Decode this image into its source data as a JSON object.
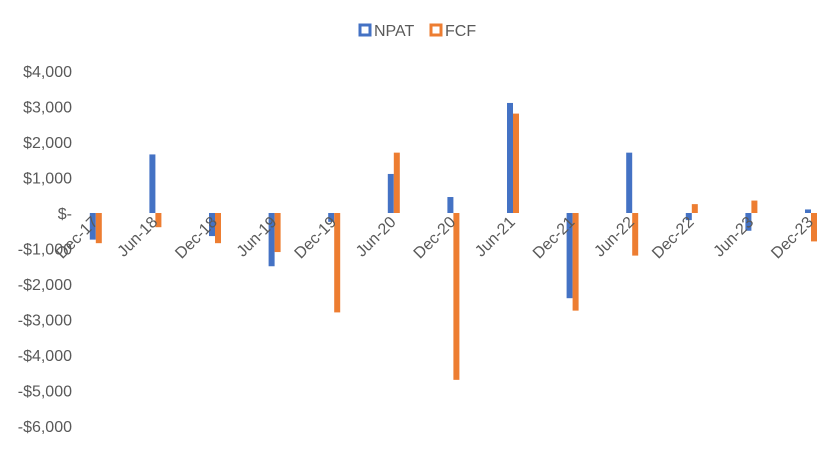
{
  "chart_data": {
    "type": "bar",
    "categories": [
      "Dec-17",
      "Jun-18",
      "Dec-18",
      "Jun-19",
      "Dec-19",
      "Jun-20",
      "Dec-20",
      "Jun-21",
      "Dec-21",
      "Jun-22",
      "Dec-22",
      "Jun-23",
      "Dec-23"
    ],
    "series": [
      {
        "name": "NPAT",
        "color": "#4472C4",
        "values": [
          -750,
          1650,
          -650,
          -1500,
          -250,
          1100,
          450,
          3100,
          -2400,
          1700,
          -200,
          -500,
          100
        ]
      },
      {
        "name": "FCF",
        "color": "#ED7D31",
        "values": [
          -850,
          -400,
          -850,
          -1100,
          -2800,
          1700,
          -4700,
          2800,
          -2750,
          -1200,
          250,
          350,
          -800
        ]
      }
    ],
    "ylim": [
      -6000,
      4000
    ],
    "yticks": [
      "$4,000",
      "$3,000",
      "$2,000",
      "$1,000",
      "$-",
      "-$1,000",
      "-$2,000",
      "-$3,000",
      "-$4,000",
      "-$5,000",
      "-$6,000"
    ],
    "ytick_values": [
      4000,
      3000,
      2000,
      1000,
      0,
      -1000,
      -2000,
      -3000,
      -4000,
      -5000,
      -6000
    ],
    "title": "",
    "xlabel": "",
    "ylabel": "",
    "grid": false,
    "legend_position": "top-center"
  }
}
